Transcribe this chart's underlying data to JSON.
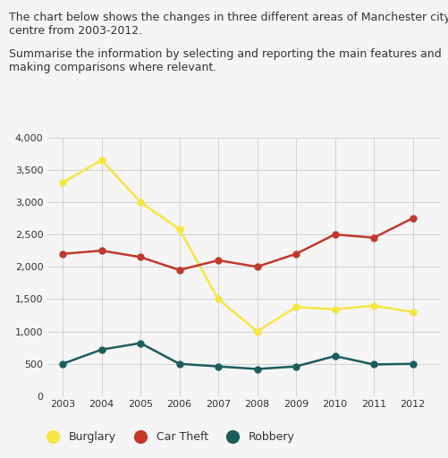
{
  "years": [
    2003,
    2004,
    2005,
    2006,
    2007,
    2008,
    2009,
    2010,
    2011,
    2012
  ],
  "burglary": [
    3300,
    3650,
    3000,
    2580,
    1500,
    1000,
    1380,
    1340,
    1400,
    1300
  ],
  "car_theft": [
    2200,
    2250,
    2150,
    1950,
    2100,
    2000,
    2200,
    2500,
    2450,
    2750
  ],
  "robbery": [
    500,
    720,
    820,
    500,
    460,
    420,
    460,
    620,
    490,
    500
  ],
  "burglary_color": "#f5e642",
  "car_theft_color": "#c0392b",
  "robbery_color": "#1c5c5c",
  "ylim": [
    0,
    4000
  ],
  "yticks": [
    0,
    500,
    1000,
    1500,
    2000,
    2500,
    3000,
    3500,
    4000
  ],
  "ytick_labels": [
    "0",
    "500",
    "1,000",
    "1,500",
    "2,000",
    "2,500",
    "3,000",
    "3,500",
    "4,000"
  ],
  "marker_size": 5,
  "line_width": 1.8,
  "title_line1": "The chart below shows the changes in three different areas of Manchester city",
  "title_line2": "centre from 2003-2012.",
  "subtitle_line1": "Summarise the information by selecting and reporting the main features and",
  "subtitle_line2": "making comparisons where relevant.",
  "legend_labels": [
    "Burglary",
    "Car Theft",
    "Robbery"
  ],
  "background_color": "#f5f5f5",
  "grid_color": "#cccccc",
  "text_color": "#333333",
  "font_size_text": 9.0,
  "font_size_tick": 8.0
}
